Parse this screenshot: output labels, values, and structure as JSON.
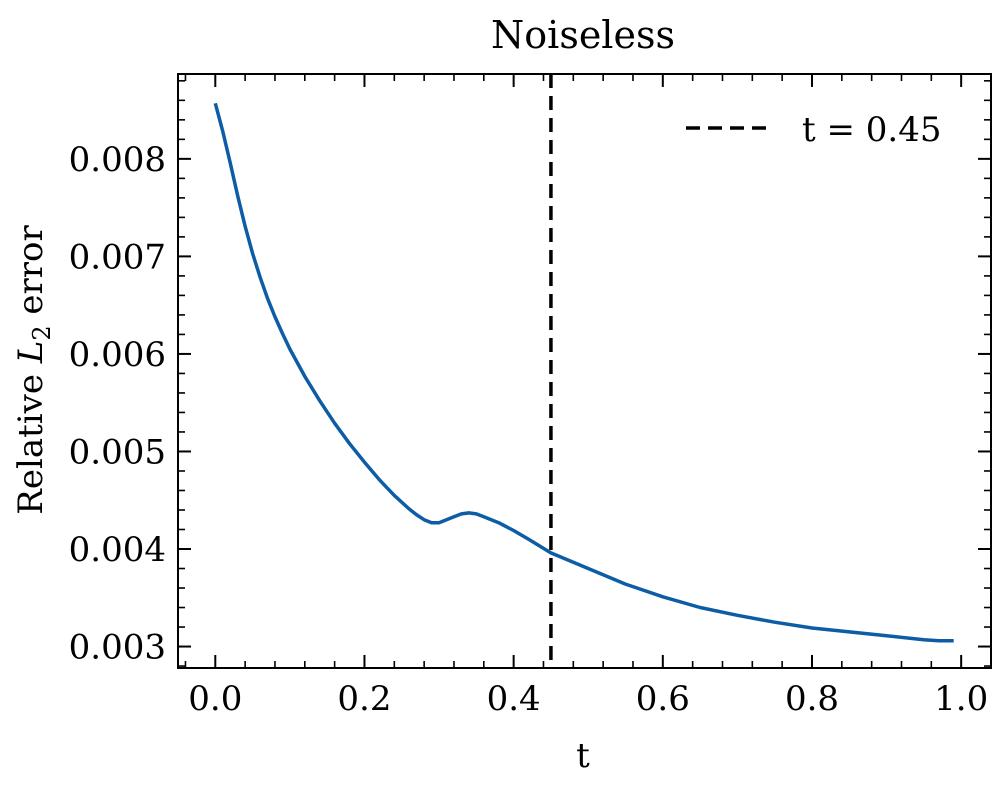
{
  "chart_data": {
    "type": "line",
    "title": "Noiseless",
    "xlabel": "t",
    "ylabel_prefix": "Relative ",
    "ylabel_var": "L",
    "ylabel_sub": "2",
    "ylabel_suffix": " error",
    "xlim": [
      -0.05,
      1.04
    ],
    "ylim": [
      0.00278,
      0.00887
    ],
    "xticks": [
      0.0,
      0.2,
      0.4,
      0.6,
      0.8,
      1.0
    ],
    "xtick_labels": [
      "0.0",
      "0.2",
      "0.4",
      "0.6",
      "0.8",
      "1.0"
    ],
    "yticks": [
      0.003,
      0.004,
      0.005,
      0.006,
      0.007,
      0.008
    ],
    "ytick_labels": [
      "0.003",
      "0.004",
      "0.005",
      "0.006",
      "0.007",
      "0.008"
    ],
    "grid": false,
    "legend_position": "top-right",
    "series": [
      {
        "color": "#0c5da5",
        "x": [
          0.0,
          0.01,
          0.02,
          0.03,
          0.04,
          0.05,
          0.06,
          0.07,
          0.08,
          0.09,
          0.1,
          0.12,
          0.14,
          0.16,
          0.18,
          0.2,
          0.22,
          0.24,
          0.26,
          0.27,
          0.28,
          0.29,
          0.3,
          0.31,
          0.32,
          0.33,
          0.34,
          0.35,
          0.36,
          0.38,
          0.4,
          0.42,
          0.45,
          0.5,
          0.55,
          0.6,
          0.65,
          0.7,
          0.75,
          0.8,
          0.85,
          0.9,
          0.95,
          0.97,
          0.99
        ],
        "y": [
          0.00857,
          0.00828,
          0.00796,
          0.00762,
          0.00731,
          0.00703,
          0.00679,
          0.00657,
          0.00638,
          0.00621,
          0.00605,
          0.00577,
          0.00552,
          0.00529,
          0.00508,
          0.00489,
          0.00471,
          0.00455,
          0.00441,
          0.00435,
          0.0043,
          0.00427,
          0.00427,
          0.0043,
          0.00433,
          0.00436,
          0.00437,
          0.00436,
          0.00433,
          0.00427,
          0.00419,
          0.0041,
          0.00396,
          0.0038,
          0.00364,
          0.00351,
          0.0034,
          0.00332,
          0.00325,
          0.00319,
          0.00315,
          0.00311,
          0.00307,
          0.00306,
          0.00306
        ]
      }
    ],
    "vline": {
      "x": 0.45,
      "label": "t = 0.45",
      "color": "#000000",
      "style": "dashed"
    }
  }
}
